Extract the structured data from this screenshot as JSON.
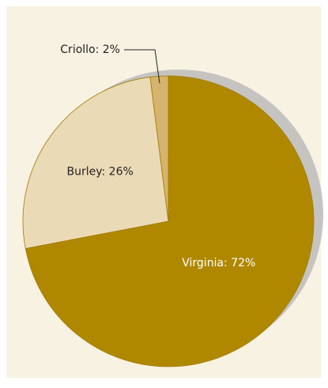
{
  "chart_data": {
    "type": "pie",
    "values": [
      72,
      26,
      2
    ],
    "value_labels": [
      "Virginia: 72%",
      "Burley: 26%",
      "Criollo: 2%"
    ],
    "colors": [
      "#b08800",
      "#ebdab6",
      "#d6b46e"
    ]
  }
}
